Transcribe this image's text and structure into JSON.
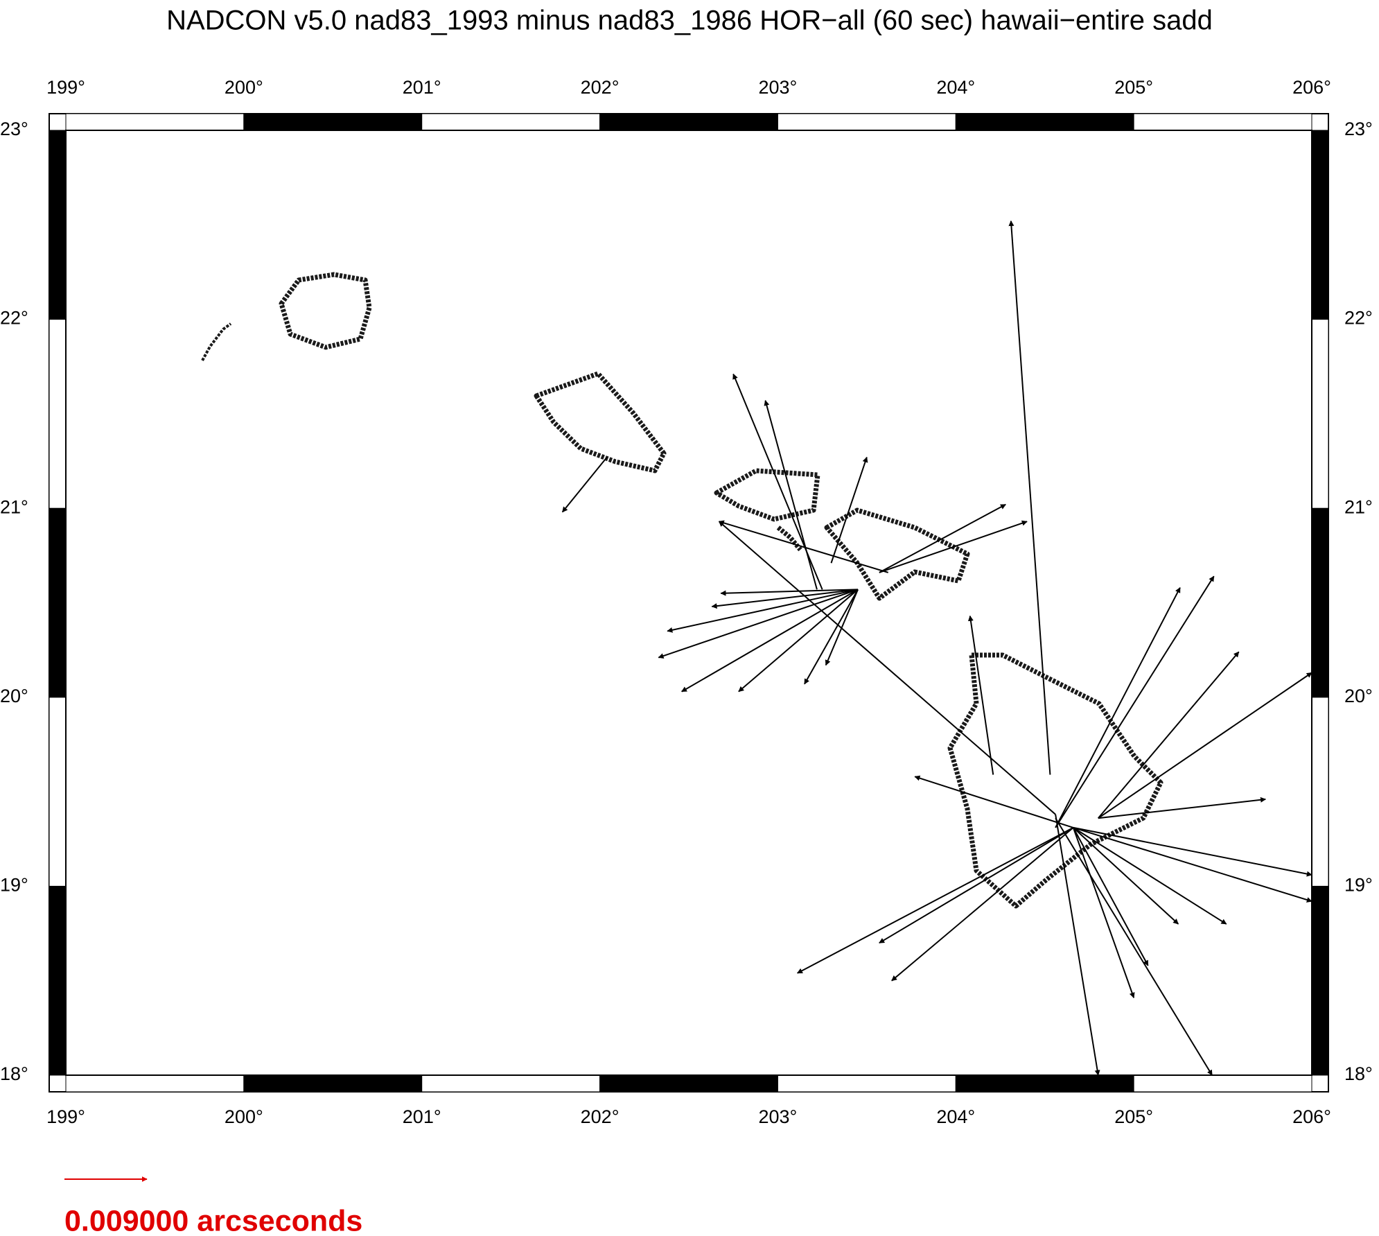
{
  "chart_data": {
    "type": "vector",
    "title": "NADCON v5.0 nad83_1993 minus nad83_1986 HOR−all (60 sec) hawaii−entire sadd",
    "xlim": [
      199,
      206
    ],
    "ylim": [
      18,
      23
    ],
    "xticks": [
      {
        "value": 199,
        "label": "199°"
      },
      {
        "value": 200,
        "label": "200°"
      },
      {
        "value": 201,
        "label": "201°"
      },
      {
        "value": 202,
        "label": "202°"
      },
      {
        "value": 203,
        "label": "203°"
      },
      {
        "value": 204,
        "label": "204°"
      },
      {
        "value": 205,
        "label": "205°"
      },
      {
        "value": 206,
        "label": "206°"
      }
    ],
    "yticks": [
      {
        "value": 18,
        "label": "18°"
      },
      {
        "value": 19,
        "label": "19°"
      },
      {
        "value": 20,
        "label": "20°"
      },
      {
        "value": 21,
        "label": "21°"
      },
      {
        "value": 22,
        "label": "22°"
      },
      {
        "value": 23,
        "label": "23°"
      }
    ],
    "color": "#000000",
    "vectors": [
      [
        204.53,
        19.59,
        204.31,
        22.52
      ],
      [
        203.45,
        20.57,
        202.38,
        20.35
      ],
      [
        203.45,
        20.57,
        202.33,
        20.21
      ],
      [
        203.45,
        20.57,
        202.46,
        20.03
      ],
      [
        203.45,
        20.57,
        202.63,
        20.48
      ],
      [
        203.45,
        20.57,
        202.78,
        20.03
      ],
      [
        203.45,
        20.57,
        203.15,
        20.07
      ],
      [
        203.45,
        20.57,
        203.27,
        20.17
      ],
      [
        203.45,
        20.57,
        202.68,
        20.55
      ],
      [
        203.25,
        20.57,
        202.75,
        21.71
      ],
      [
        203.22,
        20.57,
        202.93,
        21.57
      ],
      [
        203.3,
        20.71,
        203.5,
        21.27
      ],
      [
        203.57,
        20.66,
        204.28,
        21.02
      ],
      [
        203.57,
        20.66,
        204.4,
        20.93
      ],
      [
        203.62,
        20.66,
        202.67,
        20.93
      ],
      [
        202.04,
        21.27,
        201.79,
        20.98
      ],
      [
        204.56,
        19.31,
        205.45,
        20.64
      ],
      [
        204.56,
        19.31,
        205.26,
        20.58
      ],
      [
        204.8,
        19.36,
        205.59,
        20.24
      ],
      [
        204.8,
        19.36,
        206.0,
        20.13
      ],
      [
        204.8,
        19.36,
        205.74,
        19.46
      ],
      [
        204.66,
        19.31,
        203.11,
        18.54
      ],
      [
        204.66,
        19.31,
        203.64,
        18.5
      ],
      [
        204.66,
        19.31,
        203.57,
        18.7
      ],
      [
        204.66,
        19.31,
        205.0,
        18.41
      ],
      [
        204.66,
        19.31,
        205.08,
        18.58
      ],
      [
        204.56,
        19.36,
        205.44,
        18.0
      ],
      [
        204.66,
        19.31,
        205.52,
        18.8
      ],
      [
        204.66,
        19.31,
        205.25,
        18.8
      ],
      [
        204.66,
        19.31,
        206.0,
        19.06
      ],
      [
        204.66,
        19.31,
        206.0,
        18.92
      ],
      [
        204.66,
        19.31,
        203.77,
        19.58
      ],
      [
        204.56,
        19.38,
        204.8,
        18.0
      ],
      [
        204.21,
        19.59,
        204.08,
        20.43
      ],
      [
        204.56,
        19.38,
        202.67,
        20.93
      ]
    ],
    "scale": {
      "value": 0.009,
      "label": "0.009000 arcseconds"
    },
    "scale_color": "#e00000"
  }
}
